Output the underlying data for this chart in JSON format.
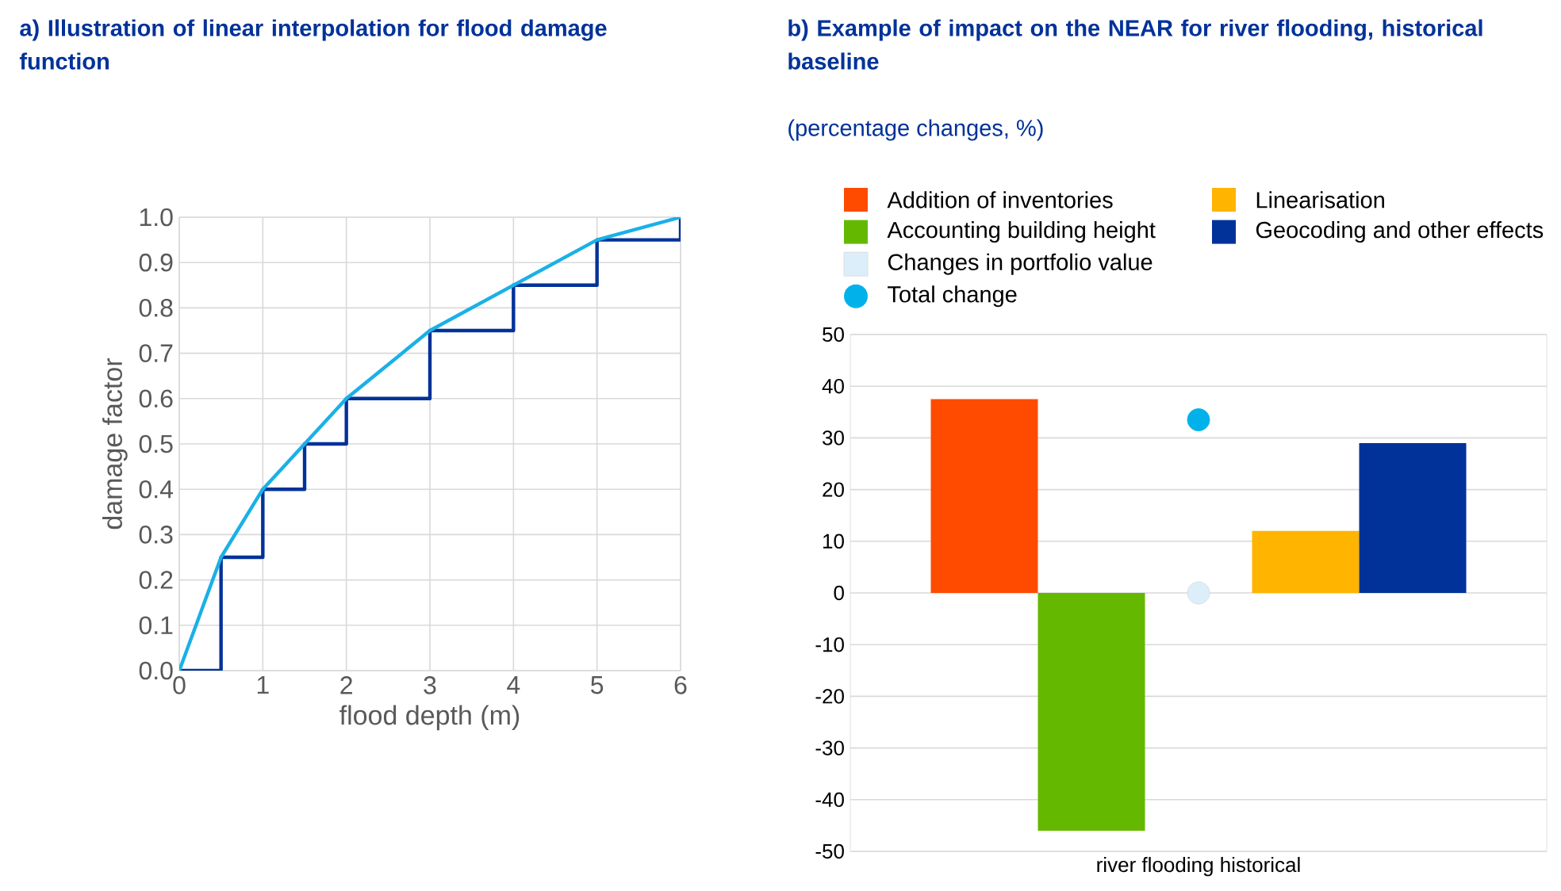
{
  "chart_data": [
    {
      "type": "line",
      "title": "a) Illustration of linear interpolation for flood damage function",
      "xlabel": "flood depth (m)",
      "ylabel": "damage factor",
      "xlim": [
        0,
        6
      ],
      "xticks": [
        0,
        1,
        2,
        3,
        4,
        5,
        6
      ],
      "ylim": [
        0,
        1
      ],
      "yticks": [
        {
          "value": 0,
          "label": "0.0"
        },
        {
          "value": 0.1,
          "label": "0.1"
        },
        {
          "value": 0.2,
          "label": "0.2"
        },
        {
          "value": 0.3,
          "label": "0.3"
        },
        {
          "value": 0.4,
          "label": "0.4"
        },
        {
          "value": 0.5,
          "label": "0.5"
        },
        {
          "value": 0.6,
          "label": "0.6"
        },
        {
          "value": 0.7,
          "label": "0.7"
        },
        {
          "value": 0.8,
          "label": "0.8"
        },
        {
          "value": 0.9,
          "label": "0.9"
        },
        {
          "value": 1,
          "label": "1.0"
        }
      ],
      "grid": true,
      "series": [
        {
          "type": "step",
          "color": "#003299",
          "x": [
            0,
            0.5,
            1,
            1.5,
            2,
            3,
            4,
            5,
            6
          ],
          "values": [
            0,
            0.25,
            0.4,
            0.5,
            0.6,
            0.75,
            0.85,
            0.95,
            1.0
          ]
        },
        {
          "type": "line",
          "color": "#1ab0e8",
          "x": [
            0,
            0.5,
            1,
            1.5,
            2,
            3,
            4,
            5,
            6
          ],
          "values": [
            0,
            0.25,
            0.4,
            0.5,
            0.6,
            0.75,
            0.85,
            0.95,
            1.0
          ]
        }
      ]
    },
    {
      "type": "bar",
      "title": "b) Example of impact on the NEAR for river flooding, historical baseline",
      "subtitle": "(percentage changes, %)",
      "categories": [
        "river flooding historical"
      ],
      "ylim": [
        -50,
        50
      ],
      "yticks": [
        -50,
        -40,
        -30,
        -20,
        -10,
        0,
        10,
        20,
        30,
        40,
        50
      ],
      "grid": "y",
      "legend": "top",
      "series": [
        {
          "name": "Addition of inventories",
          "color": "#ff4b00",
          "values": [
            37.5
          ]
        },
        {
          "name": "Accounting building height",
          "color": "#65b800",
          "values": [
            -46
          ]
        },
        {
          "name": "Changes in portfolio value",
          "type": "scatter",
          "color": "#dbeef9",
          "values": [
            0
          ]
        },
        {
          "name": "Linearisation",
          "color": "#ffb400",
          "values": [
            12
          ]
        },
        {
          "name": "Geocoding and other effects",
          "color": "#003299",
          "values": [
            29
          ]
        },
        {
          "name": "Total change",
          "type": "scatter",
          "color": "#00b1ea",
          "values": [
            33.5
          ]
        }
      ]
    }
  ]
}
